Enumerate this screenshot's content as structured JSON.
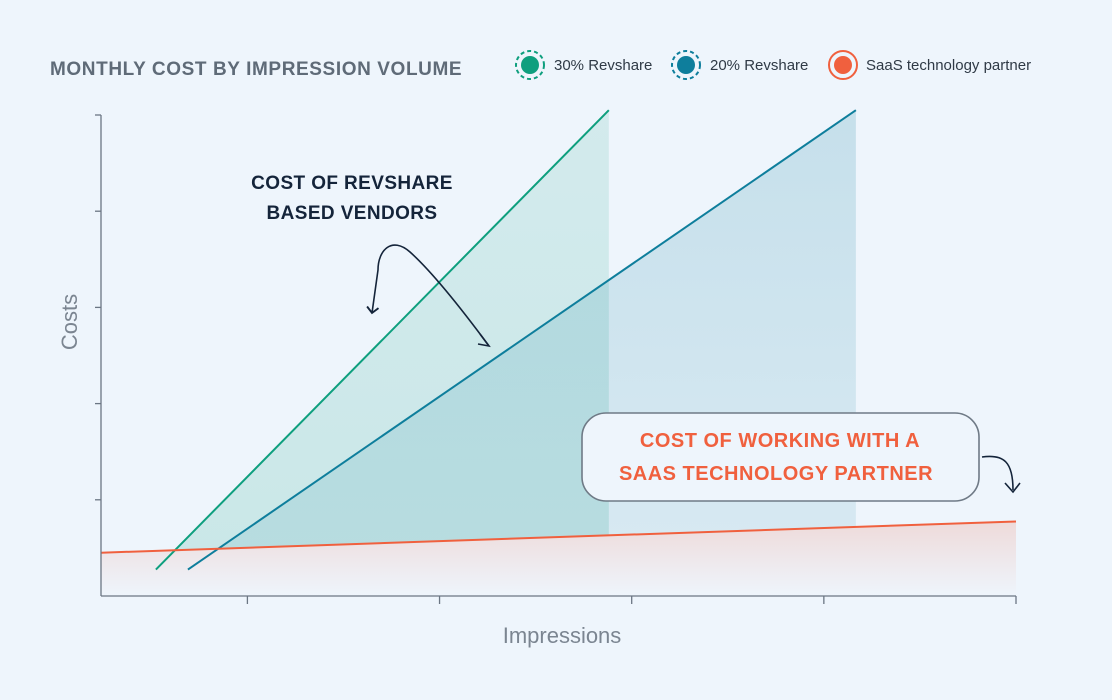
{
  "colors": {
    "background": "#eef5fc",
    "revshare30": "#0e9f7e",
    "revshare20": "#0e7e9c",
    "saas": "#f0603e",
    "axis": "#6b7683",
    "title": "#5f6b78",
    "annotation_dark": "#14243a"
  },
  "chart_data": {
    "type": "line",
    "title": "MONTHLY COST BY IMPRESSION VOLUME",
    "xlabel": "Impressions",
    "ylabel": "Costs",
    "xlim": [
      0,
      100
    ],
    "ylim": [
      0,
      100
    ],
    "x_ticks": [
      16,
      37,
      58,
      79,
      100
    ],
    "y_ticks": [
      20,
      40,
      60,
      80,
      100
    ],
    "tick_labels_shown": false,
    "grid": false,
    "legend": {
      "placement": "top",
      "entries": [
        {
          "label": "30% Revshare",
          "color": "#0e9f7e",
          "style": "dashed-ring-dot"
        },
        {
          "label": "20% Revshare",
          "color": "#0e7e9c",
          "style": "dashed-ring-dot"
        },
        {
          "label": "SaaS technology partner",
          "color": "#f0603e",
          "style": "solid-ring-dot"
        }
      ]
    },
    "series": [
      {
        "name": "30% Revshare",
        "color": "#0e9f7e",
        "x": [
          6,
          55.5
        ],
        "y": [
          5.5,
          101
        ]
      },
      {
        "name": "20% Revshare",
        "color": "#0e7e9c",
        "x": [
          9.5,
          82.5
        ],
        "y": [
          5.5,
          101
        ]
      },
      {
        "name": "SaaS technology partner",
        "color": "#f0603e",
        "x": [
          0,
          100
        ],
        "y": [
          9,
          15.5
        ]
      }
    ],
    "annotations": [
      {
        "lines": [
          "COST OF REVSHARE",
          "BASED VENDORS"
        ],
        "style": "dark"
      },
      {
        "lines": [
          "COST OF WORKING WITH A",
          "SAAS TECHNOLOGY PARTNER"
        ],
        "style": "red-boxed"
      }
    ]
  }
}
